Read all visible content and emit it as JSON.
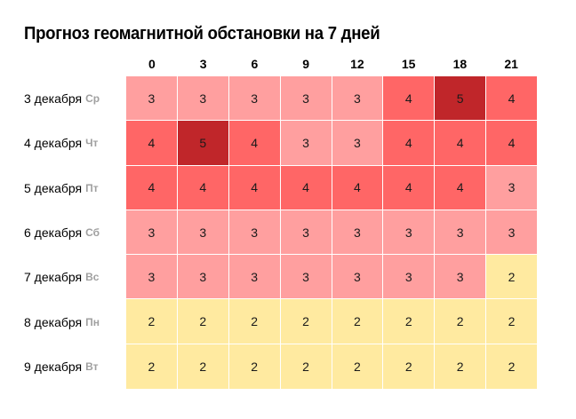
{
  "title": "Прогноз геомагнитной обстановки на 7 дней",
  "colors": {
    "level_2": "#ffeaa0",
    "level_3": "#ff9f9f",
    "level_4": "#ff6666",
    "level_5": "#c0262a"
  },
  "hours": [
    "0",
    "3",
    "6",
    "9",
    "12",
    "15",
    "18",
    "21"
  ],
  "days": [
    {
      "date": "3 декабря",
      "weekday": "Ср",
      "values": [
        3,
        3,
        3,
        3,
        3,
        4,
        5,
        4
      ]
    },
    {
      "date": "4 декабря",
      "weekday": "Чт",
      "values": [
        4,
        5,
        4,
        3,
        3,
        4,
        4,
        4
      ]
    },
    {
      "date": "5 декабря",
      "weekday": "Пт",
      "values": [
        4,
        4,
        4,
        4,
        4,
        4,
        4,
        3
      ]
    },
    {
      "date": "6 декабря",
      "weekday": "Сб",
      "values": [
        3,
        3,
        3,
        3,
        3,
        3,
        3,
        3
      ]
    },
    {
      "date": "7 декабря",
      "weekday": "Вс",
      "values": [
        3,
        3,
        3,
        3,
        3,
        3,
        3,
        2
      ]
    },
    {
      "date": "8 декабря",
      "weekday": "Пн",
      "values": [
        2,
        2,
        2,
        2,
        2,
        2,
        2,
        2
      ]
    },
    {
      "date": "9 декабря",
      "weekday": "Вт",
      "values": [
        2,
        2,
        2,
        2,
        2,
        2,
        2,
        2
      ]
    }
  ],
  "chart_data": {
    "type": "heatmap",
    "title": "Прогноз геомагнитной обстановки на 7 дней",
    "xlabel": "",
    "ylabel": "",
    "x": [
      "0",
      "3",
      "6",
      "9",
      "12",
      "15",
      "18",
      "21"
    ],
    "y": [
      "3 декабря Ср",
      "4 декабря Чт",
      "5 декабря Пт",
      "6 декабря Сб",
      "7 декабря Вс",
      "8 декабря Пн",
      "9 декабря Вт"
    ],
    "values": [
      [
        3,
        3,
        3,
        3,
        3,
        4,
        5,
        4
      ],
      [
        4,
        5,
        4,
        3,
        3,
        4,
        4,
        4
      ],
      [
        4,
        4,
        4,
        4,
        4,
        4,
        4,
        3
      ],
      [
        3,
        3,
        3,
        3,
        3,
        3,
        3,
        3
      ],
      [
        3,
        3,
        3,
        3,
        3,
        3,
        3,
        2
      ],
      [
        2,
        2,
        2,
        2,
        2,
        2,
        2,
        2
      ],
      [
        2,
        2,
        2,
        2,
        2,
        2,
        2,
        2
      ]
    ],
    "color_scale": {
      "2": "#ffeaa0",
      "3": "#ff9f9f",
      "4": "#ff6666",
      "5": "#c0262a"
    },
    "grid": true,
    "legend": "none"
  }
}
